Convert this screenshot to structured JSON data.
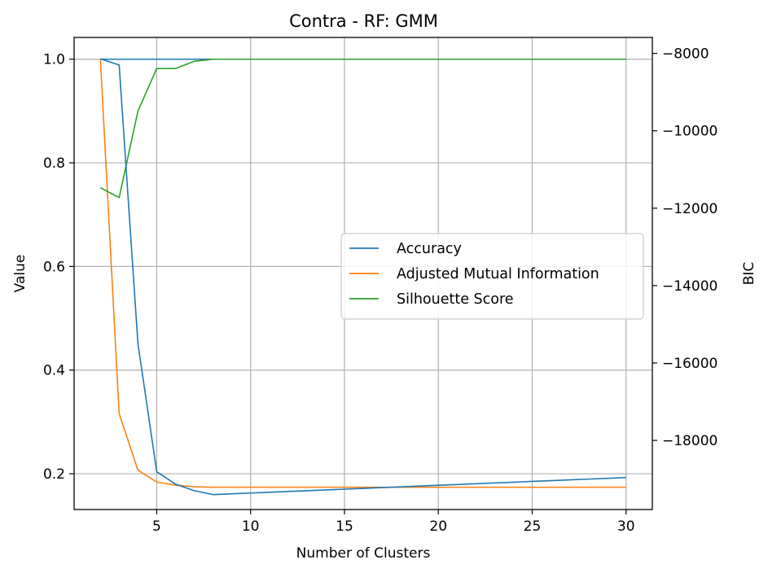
{
  "chart_data": {
    "type": "line",
    "title": "Contra - RF: GMM",
    "xlabel": "Number of Clusters",
    "ylabel": "Value",
    "y2label": "BIC",
    "xlim": [
      0.6,
      31.4
    ],
    "ylim": [
      0.131,
      1.042
    ],
    "y2lim": [
      -19786,
      -7588
    ],
    "xticks": [
      5,
      10,
      15,
      20,
      25,
      30
    ],
    "yticks": [
      0.2,
      0.4,
      0.6,
      0.8,
      1.0
    ],
    "y2ticks": [
      -18000,
      -16000,
      -14000,
      -12000,
      -10000,
      -8000
    ],
    "grid": true,
    "legend_position": "center-right",
    "x": [
      2,
      3,
      4,
      5,
      6,
      7,
      8,
      9,
      10,
      11,
      12,
      13,
      14,
      15,
      16,
      17,
      18,
      19,
      20,
      21,
      22,
      23,
      24,
      25,
      26,
      27,
      28,
      29,
      30
    ],
    "series": [
      {
        "name": "Accuracy",
        "color": "#1f77b4",
        "values": [
          1.0,
          1.0,
          1.0,
          1.0,
          1.0,
          1.0,
          1.0,
          1.0,
          1.0,
          1.0,
          1.0,
          1.0,
          1.0,
          1.0,
          1.0,
          1.0,
          1.0,
          1.0,
          1.0,
          1.0,
          1.0,
          1.0,
          1.0,
          1.0,
          1.0,
          1.0,
          1.0,
          1.0,
          1.0
        ]
      },
      {
        "name": "Adjusted Mutual Information",
        "color": "#ff7f0e",
        "values": [
          1.0,
          0.316,
          0.207,
          0.184,
          0.178,
          0.175,
          0.174,
          0.174,
          0.174,
          0.174,
          0.174,
          0.174,
          0.174,
          0.174,
          0.174,
          0.174,
          0.174,
          0.174,
          0.174,
          0.174,
          0.174,
          0.174,
          0.174,
          0.174,
          0.174,
          0.174,
          0.174,
          0.174,
          0.174
        ]
      },
      {
        "name": "Silhouette Score",
        "color": "#2ca02c",
        "values": [
          0.752,
          0.733,
          0.9,
          0.982,
          0.982,
          0.996,
          1.0,
          1.0,
          1.0,
          1.0,
          1.0,
          1.0,
          1.0,
          1.0,
          1.0,
          1.0,
          1.0,
          1.0,
          1.0,
          1.0,
          1.0,
          1.0,
          1.0,
          1.0,
          1.0,
          1.0,
          1.0,
          1.0,
          1.0
        ]
      },
      {
        "name": "BIC",
        "color": "#1f77b4",
        "axis": "right",
        "values": [
          -8140,
          -8300,
          -15500,
          -18810,
          -19130,
          -19300,
          -19400,
          -19380,
          -19360,
          -19340,
          -19320,
          -19300,
          -19280,
          -19260,
          -19240,
          -19220,
          -19200,
          -19180,
          -19160,
          -19140,
          -19120,
          -19100,
          -19080,
          -19060,
          -19040,
          -19020,
          -19000,
          -18980,
          -18960
        ]
      }
    ]
  }
}
